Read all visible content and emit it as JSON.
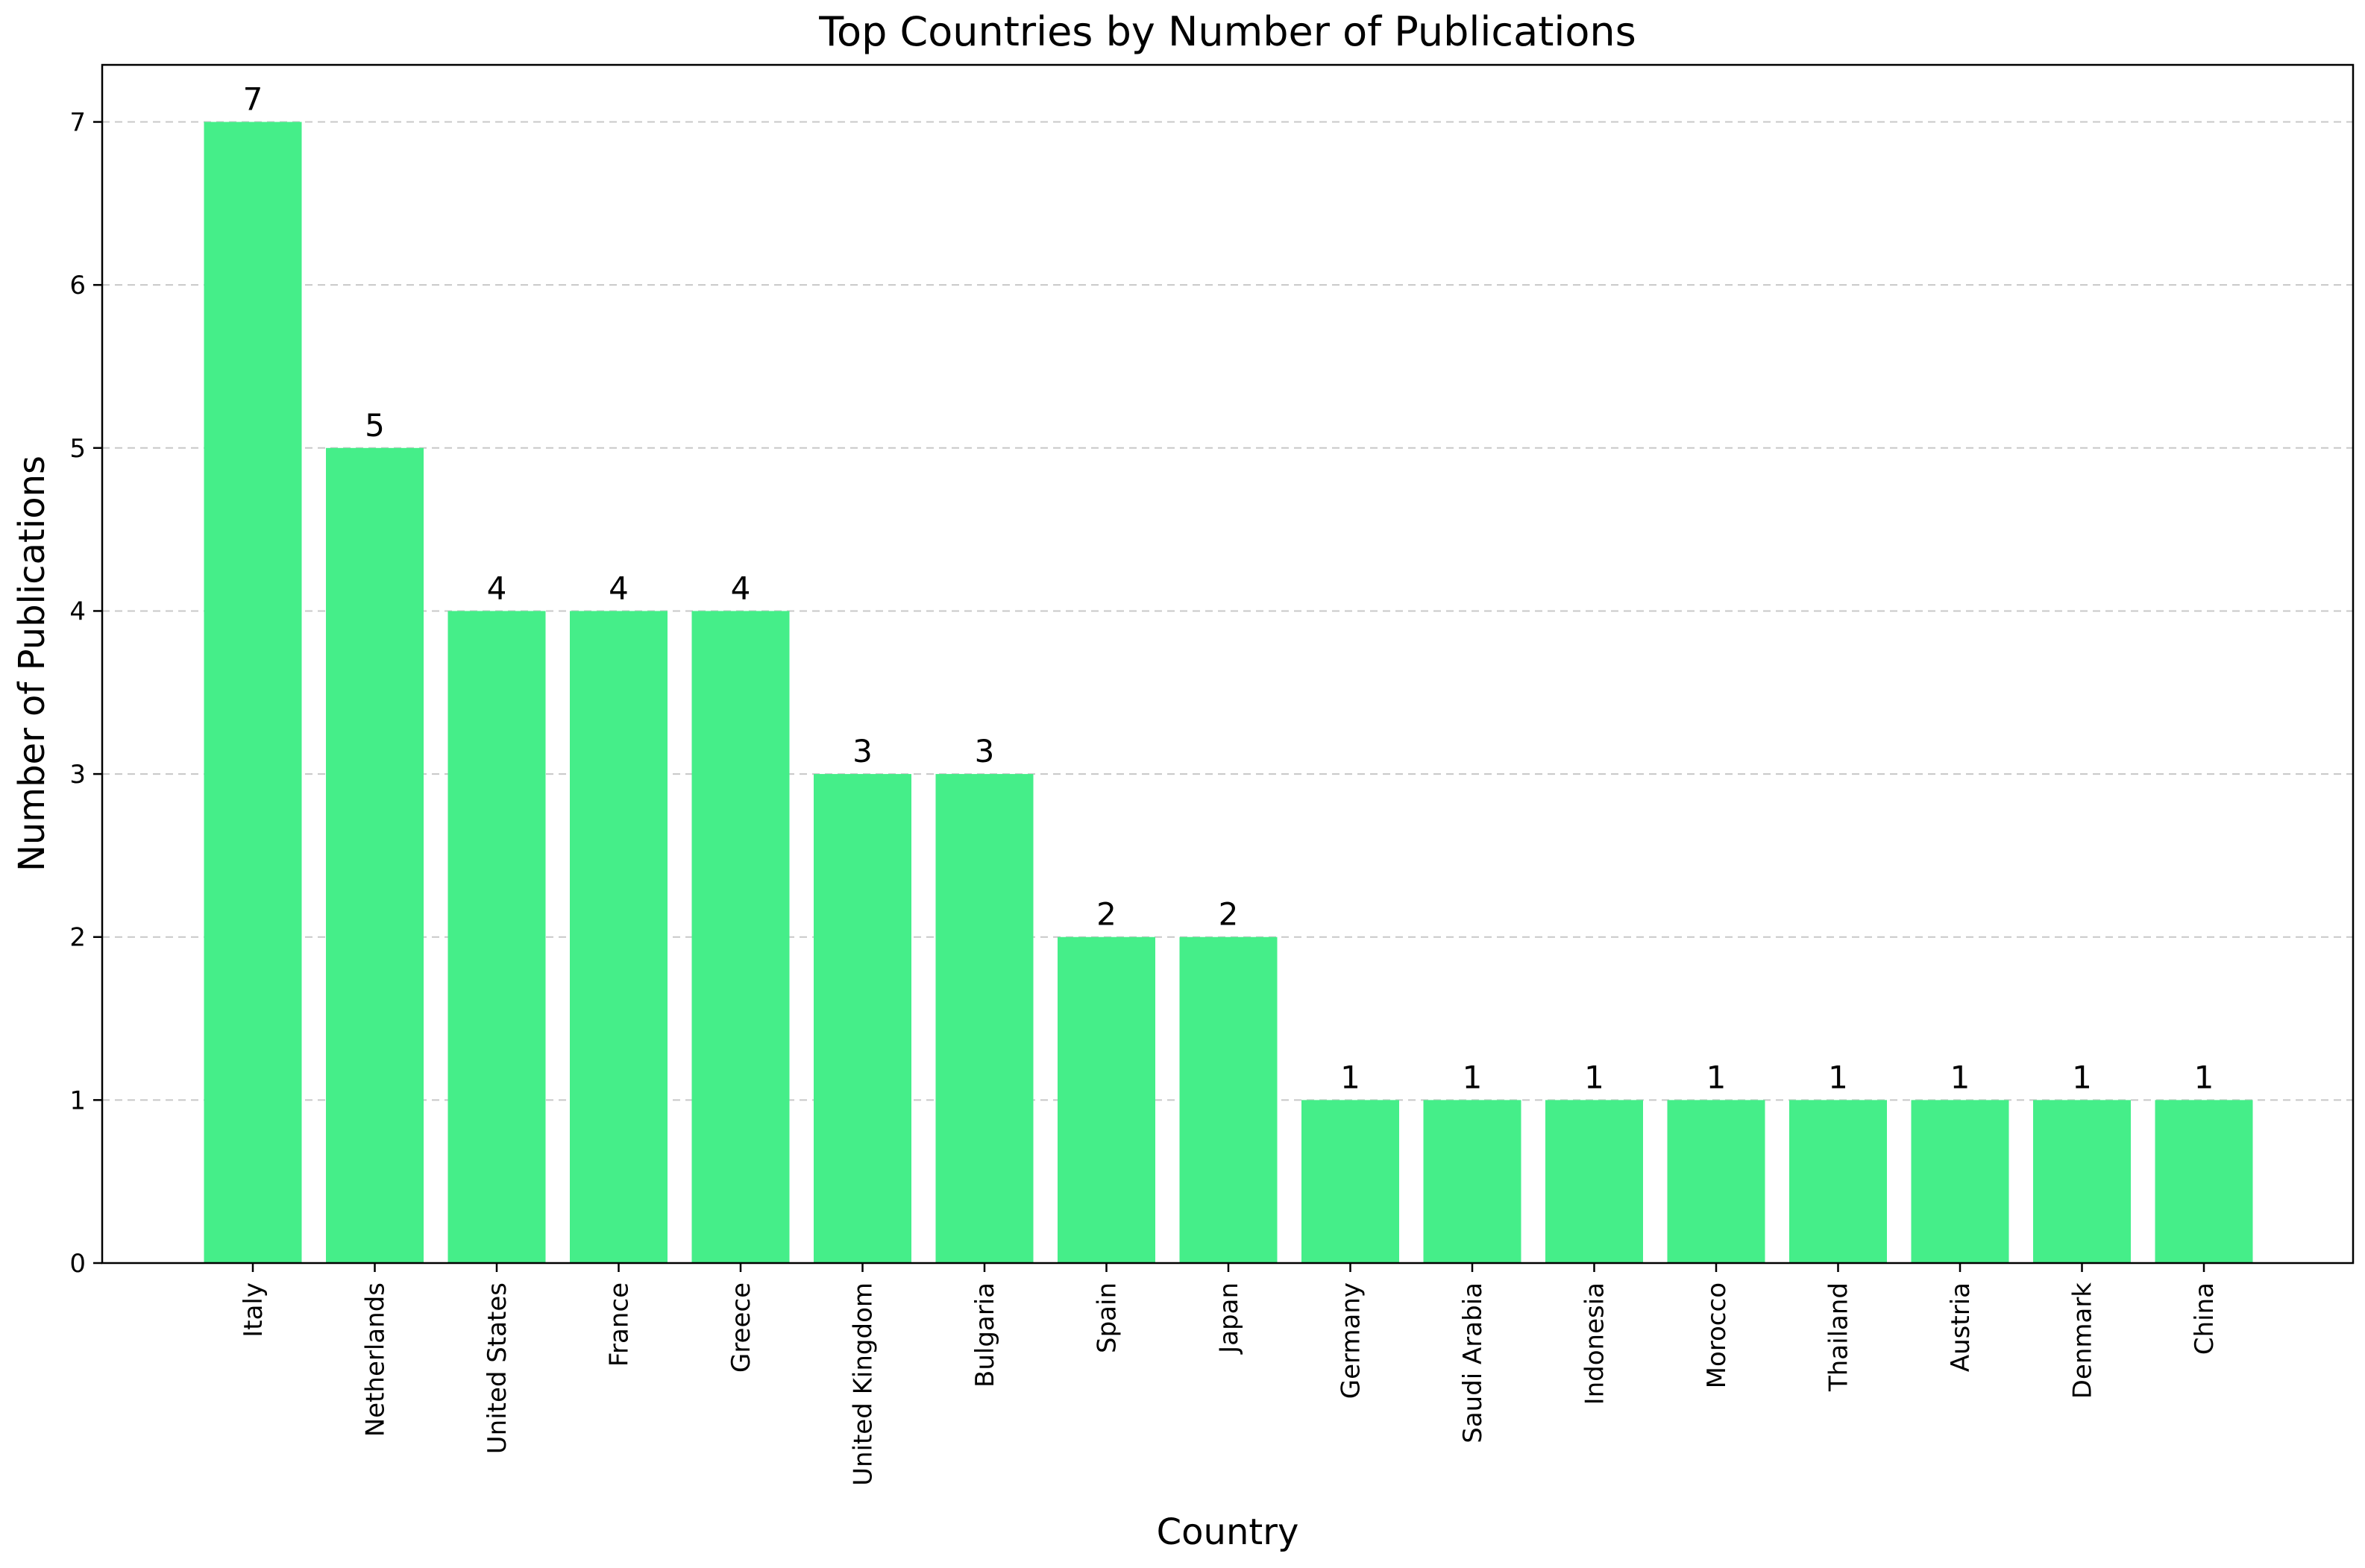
{
  "chart_data": {
    "type": "bar",
    "title": "Top Countries by Number of Publications",
    "xlabel": "Country",
    "ylabel": "Number of Publications",
    "categories": [
      "Italy",
      "Netherlands",
      "United States",
      "France",
      "Greece",
      "United Kingdom",
      "Bulgaria",
      "Spain",
      "Japan",
      "Germany",
      "Saudi Arabia",
      "Indonesia",
      "Morocco",
      "Thailand",
      "Austria",
      "Denmark",
      "China"
    ],
    "values": [
      7,
      5,
      4,
      4,
      4,
      3,
      3,
      2,
      2,
      1,
      1,
      1,
      1,
      1,
      1,
      1,
      1
    ],
    "yticks": [
      0,
      1,
      2,
      3,
      4,
      5,
      6,
      7
    ],
    "ylim": [
      0,
      7.35
    ],
    "grid": "y-dashed",
    "bar_color": "#45ee89",
    "grid_color": "#c8c8c8"
  }
}
